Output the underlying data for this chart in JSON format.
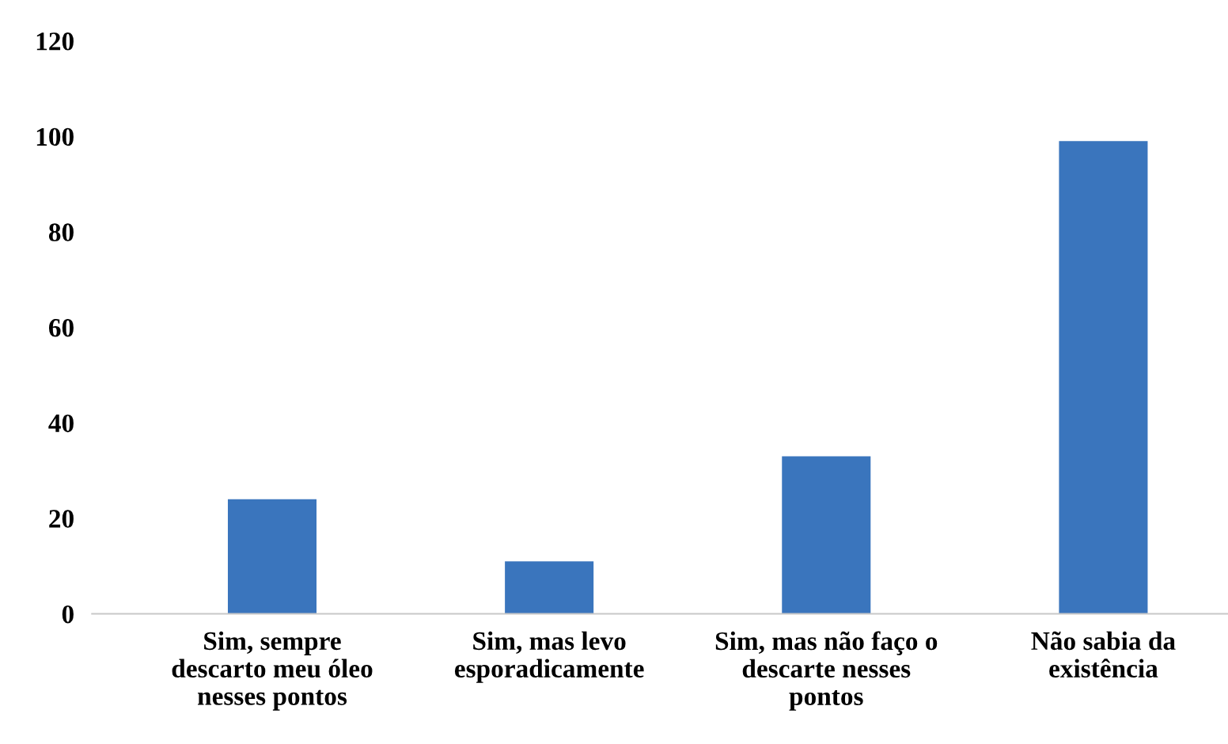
{
  "chart_data": {
    "type": "bar",
    "categories": [
      "Sim, sempre\ndescarto meu óleo\nnesses pontos",
      "Sim, mas levo\nesporadicamente",
      "Sim, mas não faço o\ndescarte nesses\npontos",
      "Não sabia da\nexistência"
    ],
    "values": [
      24,
      11,
      33,
      99
    ],
    "color": "#3a75bd",
    "ylim": [
      0,
      120
    ],
    "yticks": [
      0,
      20,
      40,
      60,
      80,
      100,
      120
    ],
    "grid": false
  }
}
